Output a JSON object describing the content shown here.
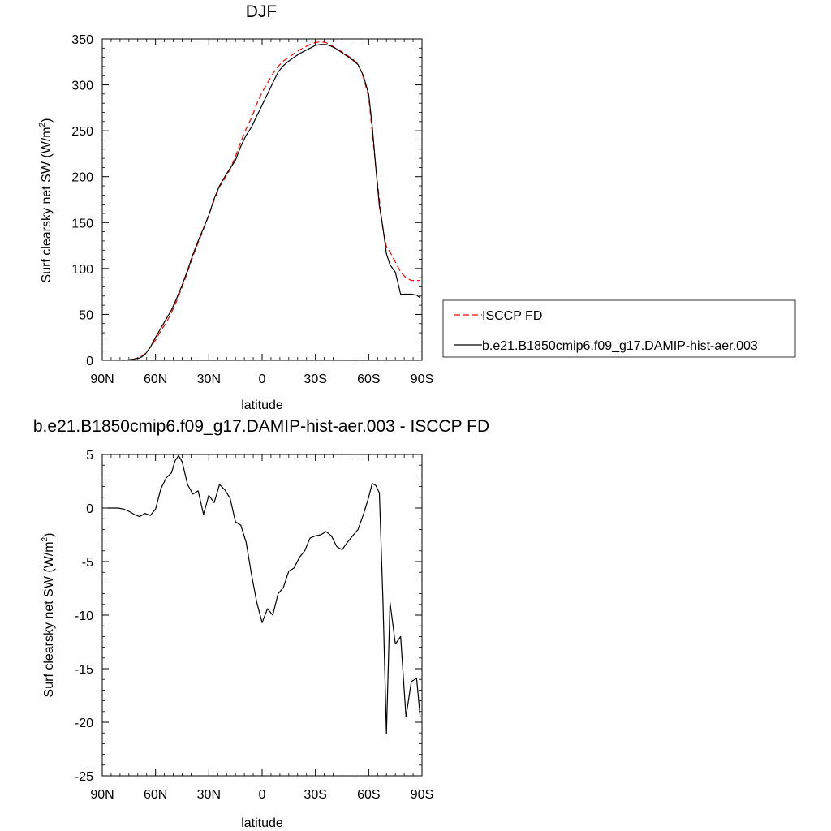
{
  "chart_data": [
    {
      "type": "line",
      "title": "DJF",
      "xlabel": "latitude",
      "ylabel": "Surf clearsky net SW (W/m",
      "ylabel_sup": "2",
      "ylabel_end": ")",
      "xlim": [
        90,
        -90
      ],
      "ylim": [
        0,
        350
      ],
      "xticks": [
        90,
        60,
        30,
        0,
        -30,
        -60,
        -90
      ],
      "xtick_labels": [
        "90N",
        "60N",
        "30N",
        "0",
        "30S",
        "60S",
        "90S"
      ],
      "yticks": [
        0,
        50,
        100,
        150,
        200,
        250,
        300,
        350
      ],
      "ytick_labels": [
        "0",
        "50",
        "100",
        "150",
        "200",
        "250",
        "300",
        "350"
      ],
      "legend_position": "right",
      "series": [
        {
          "name": "ISCCP FD",
          "color": "#ff0000",
          "dash": true,
          "x": [
            78,
            75,
            72,
            69,
            66,
            63,
            60,
            57,
            54,
            51,
            48,
            45,
            42,
            39,
            36,
            33,
            30,
            27,
            24,
            21,
            18,
            15,
            12,
            9,
            6,
            3,
            0,
            -3,
            -6,
            -9,
            -12,
            -15,
            -18,
            -21,
            -24,
            -27,
            -30,
            -33,
            -36,
            -39,
            -42,
            -45,
            -48,
            -51,
            -54,
            -57,
            -60,
            -62,
            -64,
            -66,
            -68,
            -70,
            -72,
            -75,
            -78,
            -81,
            -84,
            -87,
            -89
          ],
          "y": [
            0,
            0.5,
            1.5,
            3,
            7,
            14,
            22,
            32,
            41,
            52,
            65,
            80,
            96,
            113,
            128,
            143,
            158,
            174,
            189,
            198,
            208,
            222,
            238,
            252,
            264,
            279,
            292,
            302,
            312,
            320,
            326,
            330,
            334,
            338,
            341,
            344,
            346,
            347,
            346,
            343,
            339,
            336,
            332,
            328,
            323,
            308,
            287,
            248,
            210,
            175,
            143,
            124,
            118,
            107,
            96,
            90,
            87,
            87,
            87
          ]
        },
        {
          "name": "b.e21.B1850cmip6.f09_g17.DAMIP-hist-aer.003",
          "color": "#000000",
          "dash": false,
          "x": [
            78,
            75,
            72,
            69,
            66,
            63,
            60,
            57,
            54,
            51,
            48,
            45,
            42,
            39,
            36,
            33,
            30,
            27,
            24,
            21,
            18,
            15,
            12,
            9,
            6,
            3,
            0,
            -3,
            -6,
            -9,
            -12,
            -15,
            -18,
            -21,
            -24,
            -27,
            -30,
            -33,
            -36,
            -39,
            -42,
            -45,
            -48,
            -51,
            -54,
            -57,
            -60,
            -62,
            -64,
            -66,
            -68,
            -70,
            -72,
            -75,
            -78,
            -81,
            -84,
            -87,
            -89
          ],
          "y": [
            0,
            0.5,
            1.5,
            2.5,
            6,
            14,
            25,
            35,
            45,
            55,
            68,
            82,
            98,
            115,
            130,
            144,
            158,
            176,
            190,
            200,
            209,
            218,
            233,
            245,
            254,
            266,
            278,
            290,
            302,
            314,
            321,
            326,
            330,
            334,
            337,
            340,
            343,
            344,
            344,
            342,
            339,
            335,
            331,
            327,
            322,
            310,
            290,
            255,
            210,
            168,
            145,
            116,
            104,
            96,
            72,
            72,
            72,
            71,
            68
          ]
        }
      ]
    },
    {
      "type": "line",
      "title": "b.e21.B1850cmip6.f09_g17.DAMIP-hist-aer.003 - ISCCP FD",
      "xlabel": "latitude",
      "ylabel": "Surf clearsky net SW (W/m",
      "ylabel_sup": "2",
      "ylabel_end": ")",
      "xlim": [
        90,
        -90
      ],
      "ylim": [
        -25,
        5
      ],
      "xticks": [
        90,
        60,
        30,
        0,
        -30,
        -60,
        -90
      ],
      "xtick_labels": [
        "90N",
        "60N",
        "30N",
        "0",
        "30S",
        "60S",
        "90S"
      ],
      "yticks": [
        5,
        0,
        -5,
        -10,
        -15,
        -20,
        -25
      ],
      "ytick_labels": [
        "5",
        "0",
        "-5",
        "-10",
        "-15",
        "-20",
        "-25"
      ],
      "series": [
        {
          "color": "#000000",
          "x": [
            87,
            84,
            81,
            78,
            75,
            72,
            69,
            66,
            63,
            60,
            57,
            54,
            51,
            49,
            47,
            45,
            42,
            39,
            36,
            33,
            30,
            27,
            24,
            21,
            18,
            15,
            12,
            9,
            6,
            3,
            0,
            -3,
            -6,
            -9,
            -12,
            -15,
            -18,
            -21,
            -24,
            -27,
            -30,
            -33,
            -36,
            -39,
            -42,
            -45,
            -48,
            -51,
            -54,
            -57,
            -60,
            -62,
            -64,
            -66,
            -68,
            -70,
            -72,
            -75,
            -78,
            -81,
            -84,
            -87,
            -89
          ],
          "y": [
            0,
            0,
            0,
            -0.1,
            -0.3,
            -0.6,
            -0.8,
            -0.5,
            -0.7,
            -0.1,
            1.8,
            2.8,
            3.3,
            4.4,
            4.9,
            4.3,
            2.2,
            1.3,
            1.6,
            -0.6,
            1.2,
            0.5,
            2.2,
            1.7,
            0.9,
            -1.3,
            -1.6,
            -3.2,
            -6.2,
            -8.8,
            -10.7,
            -9.4,
            -10,
            -8,
            -7.4,
            -5.9,
            -5.6,
            -4.6,
            -4,
            -2.8,
            -2.6,
            -2.5,
            -2.2,
            -2.6,
            -3.6,
            -3.9,
            -3.2,
            -2.6,
            -2,
            -0.6,
            1,
            2.3,
            2.1,
            1.4,
            -8.4,
            -21.1,
            -8.8,
            -12.7,
            -12,
            -19.5,
            -16.2,
            -15.9,
            -19.5
          ]
        }
      ]
    }
  ]
}
